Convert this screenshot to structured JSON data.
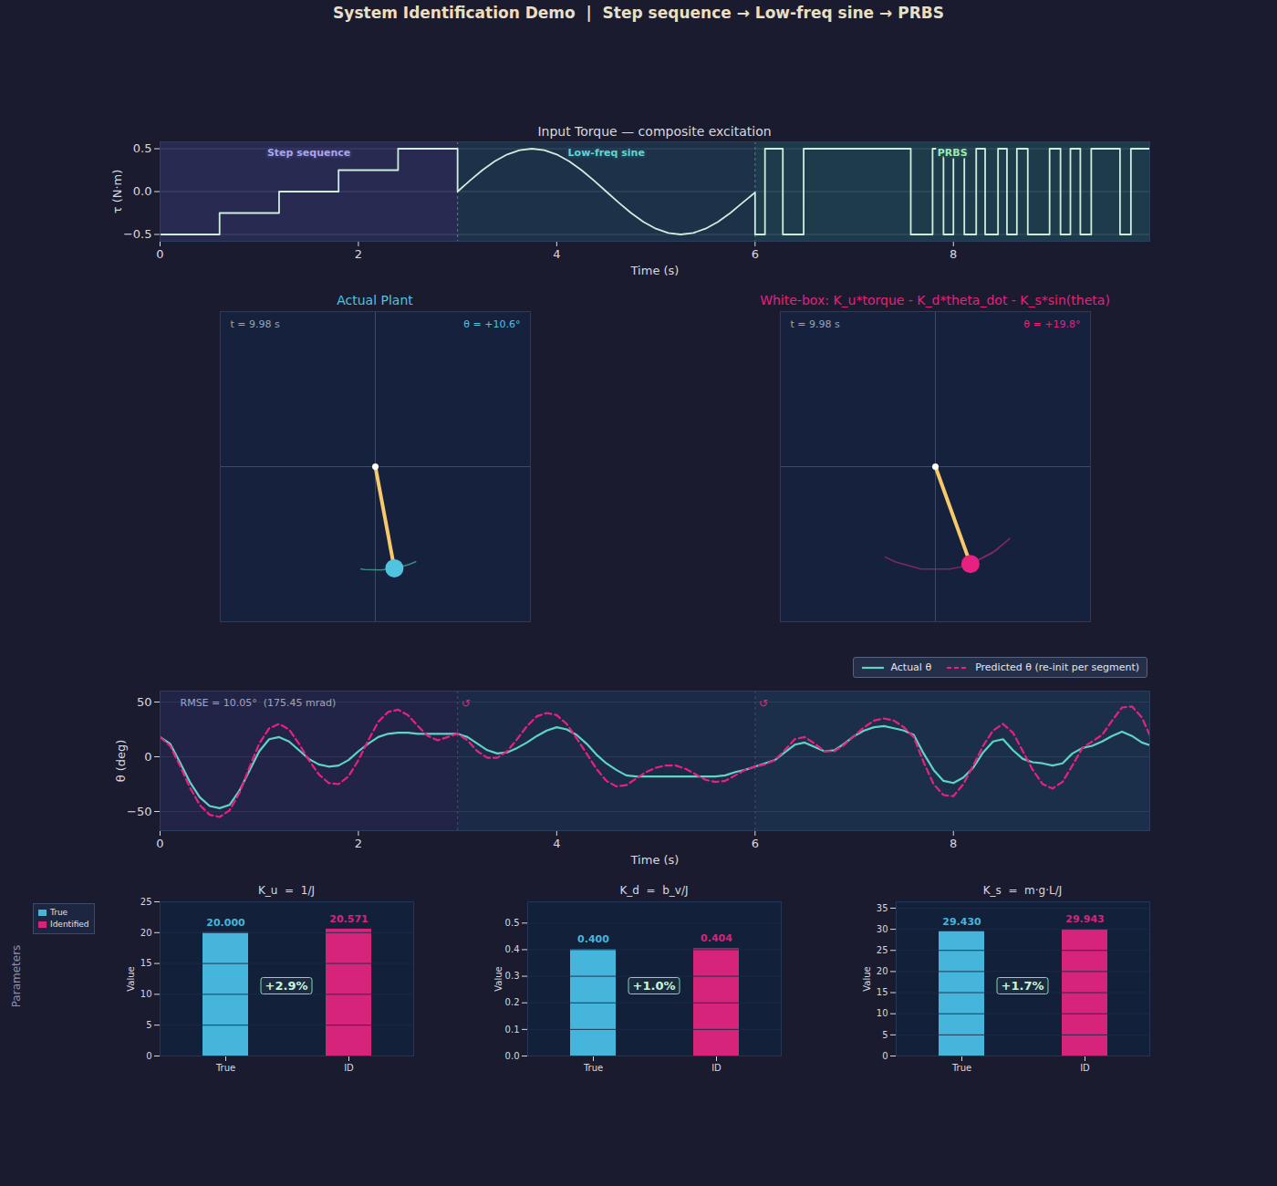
{
  "title": "System Identification Demo  |  Step sequence → Low-freq sine → PRBS",
  "side_label": "Parameters",
  "chart_data": [
    {
      "type": "line",
      "title": "Input Torque — composite excitation",
      "x_label": "Time (s)",
      "y_label": "τ (N·m)",
      "xlim": [
        0,
        9.98
      ],
      "ylim": [
        -0.58,
        0.58
      ],
      "xticks": [
        0,
        2,
        4,
        6,
        8
      ],
      "yticks": [
        {
          "value": -0.5,
          "label": "−0.5"
        },
        {
          "value": 0,
          "label": "0.0"
        },
        0.5
      ],
      "grid": true,
      "color": "#cdeedd",
      "regions": [
        {
          "name": "Step sequence",
          "start": 0,
          "end": 3,
          "color": "#282a52"
        },
        {
          "name": "Low-freq sine",
          "start": 3,
          "end": 6,
          "color": "#1d3249"
        },
        {
          "name": "PRBS",
          "start": 6,
          "end": 9.98,
          "color": "#1e3b4c"
        }
      ],
      "x": [
        0,
        0.6,
        0.6,
        1.2,
        1.2,
        1.8,
        1.8,
        2.4,
        2.4,
        3.0,
        3.0,
        3.125,
        3.25,
        3.375,
        3.5,
        3.625,
        3.75,
        3.875,
        4.0,
        4.125,
        4.25,
        4.375,
        4.5,
        4.625,
        4.75,
        4.875,
        5.0,
        5.125,
        5.25,
        5.375,
        5.5,
        5.625,
        5.75,
        5.875,
        6.0,
        6.0,
        6.1,
        6.1,
        6.28,
        6.28,
        6.49,
        6.49,
        7.57,
        7.57,
        7.79,
        7.79,
        7.9,
        7.9,
        8.0,
        8.0,
        8.11,
        8.11,
        8.23,
        8.23,
        8.32,
        8.32,
        8.45,
        8.45,
        8.54,
        8.54,
        8.64,
        8.64,
        8.75,
        8.75,
        8.97,
        8.97,
        9.08,
        9.08,
        9.18,
        9.18,
        9.28,
        9.28,
        9.39,
        9.39,
        9.68,
        9.68,
        9.79,
        9.79,
        9.98
      ],
      "values": [
        -0.5,
        -0.5,
        -0.25,
        -0.25,
        0,
        0,
        0.25,
        0.25,
        0.5,
        0.5,
        0,
        0.129,
        0.25,
        0.354,
        0.433,
        0.483,
        0.5,
        0.483,
        0.433,
        0.354,
        0.25,
        0.129,
        0,
        -0.129,
        -0.25,
        -0.354,
        -0.433,
        -0.483,
        -0.5,
        -0.483,
        -0.433,
        -0.354,
        -0.25,
        -0.129,
        -0.01,
        -0.5,
        -0.5,
        0.5,
        0.5,
        -0.5,
        -0.5,
        0.5,
        0.5,
        -0.5,
        -0.5,
        0.5,
        0.5,
        -0.5,
        -0.5,
        0.5,
        0.5,
        -0.5,
        -0.5,
        0.5,
        0.5,
        -0.5,
        -0.5,
        0.5,
        0.5,
        -0.5,
        -0.5,
        0.5,
        0.5,
        -0.5,
        -0.5,
        0.5,
        0.5,
        -0.5,
        -0.5,
        0.5,
        0.5,
        -0.5,
        -0.5,
        0.5,
        0.5,
        -0.5,
        -0.5,
        0.5,
        0.5
      ]
    },
    {
      "type": "line",
      "x_label": "Time (s)",
      "y_label": "θ (deg)",
      "xlim": [
        0,
        9.98
      ],
      "ylim": [
        -67.5,
        60
      ],
      "xticks": [
        0,
        2,
        4,
        6,
        8
      ],
      "yticks": [
        {
          "value": -50,
          "label": "−50"
        },
        0,
        50
      ],
      "grid": true,
      "legend": "above",
      "annotation": "RMSE = 10.05°  (175.45 mrad)",
      "markers": [
        {
          "x": 3,
          "text": "↺"
        },
        {
          "x": 6,
          "text": "↺"
        }
      ],
      "regions": [
        {
          "start": 0,
          "end": 3,
          "color": "#222447"
        },
        {
          "start": 3,
          "end": 6,
          "color": "#1b2b47"
        },
        {
          "start": 6,
          "end": 9.98,
          "color": "#1c2f4a"
        }
      ],
      "x": [
        0,
        0.1,
        0.2,
        0.3,
        0.4,
        0.5,
        0.6,
        0.7,
        0.8,
        0.9,
        1.0,
        1.1,
        1.2,
        1.3,
        1.4,
        1.5,
        1.6,
        1.7,
        1.8,
        1.9,
        2.0,
        2.1,
        2.2,
        2.3,
        2.4,
        2.5,
        2.6,
        2.7,
        2.8,
        2.9,
        3.0,
        3.1,
        3.2,
        3.3,
        3.4,
        3.5,
        3.6,
        3.7,
        3.8,
        3.9,
        4.0,
        4.1,
        4.2,
        4.3,
        4.4,
        4.5,
        4.6,
        4.7,
        4.8,
        4.9,
        5.0,
        5.1,
        5.2,
        5.3,
        5.4,
        5.5,
        5.6,
        5.7,
        5.8,
        5.9,
        6.0,
        6.1,
        6.2,
        6.3,
        6.4,
        6.5,
        6.6,
        6.7,
        6.8,
        6.9,
        7.0,
        7.1,
        7.2,
        7.3,
        7.4,
        7.5,
        7.6,
        7.7,
        7.8,
        7.9,
        8.0,
        8.1,
        8.2,
        8.3,
        8.4,
        8.5,
        8.6,
        8.7,
        8.8,
        8.9,
        9.0,
        9.1,
        9.2,
        9.3,
        9.4,
        9.5,
        9.6,
        9.7,
        9.8,
        9.9,
        9.98
      ],
      "series": [
        {
          "name": "Actual θ",
          "color": "#5fd4c4",
          "line_style": "solid",
          "values": [
            18,
            12,
            -5,
            -23,
            -37,
            -45,
            -47,
            -44,
            -31,
            -13,
            5,
            16,
            18,
            14,
            6,
            -2,
            -7,
            -9,
            -8,
            -3,
            5,
            12,
            18,
            21,
            22,
            22,
            21,
            21,
            21,
            21,
            21,
            18,
            12,
            6,
            3,
            4,
            8,
            13,
            19,
            24,
            27,
            25,
            20,
            12,
            2,
            -6,
            -12,
            -17,
            -18,
            -18,
            -18,
            -18,
            -18,
            -18,
            -18,
            -18,
            -18,
            -17,
            -14,
            -12,
            -9,
            -6,
            -3,
            4,
            11,
            13,
            9,
            5,
            6,
            12,
            19,
            24,
            27,
            28,
            26,
            24,
            20,
            3,
            -12,
            -22,
            -24,
            -19,
            -10,
            4,
            14,
            16,
            6,
            -2,
            -5,
            -6,
            -8,
            -6,
            3,
            8,
            10,
            14,
            19,
            23,
            19,
            13,
            10.6
          ]
        },
        {
          "name": "Predicted θ (re-init per segment)",
          "color": "#e8207f",
          "line_style": "dashed",
          "values": [
            18,
            10,
            -8,
            -28,
            -44,
            -53,
            -55,
            -49,
            -33,
            -10,
            12,
            26,
            30,
            25,
            12,
            -3,
            -16,
            -24,
            -25,
            -18,
            -3,
            15,
            32,
            41,
            43,
            38,
            28,
            19,
            15,
            18,
            21,
            15,
            5,
            -1,
            -1,
            5,
            16,
            28,
            37,
            40,
            38,
            30,
            17,
            3,
            -11,
            -22,
            -27,
            -26,
            -20,
            -14,
            -10,
            -8,
            -8,
            -11,
            -16,
            -21,
            -23,
            -22,
            -17,
            -12,
            -9,
            -7,
            -3,
            6,
            16,
            18,
            12,
            5,
            5,
            11,
            19,
            27,
            33,
            35,
            33,
            27,
            18,
            -5,
            -25,
            -35,
            -36,
            -25,
            -8,
            10,
            24,
            30,
            22,
            5,
            -12,
            -25,
            -29,
            -23,
            -8,
            8,
            14,
            20,
            33,
            45,
            46,
            36,
            19.8
          ]
        }
      ]
    },
    {
      "type": "pendulum",
      "title": "Actual Plant",
      "color": "#4fc3e0",
      "tick_labels": false,
      "xlim": [
        -1.5,
        1.5
      ],
      "ylim": [
        -1.5,
        1.5
      ],
      "pivot": [
        0,
        0
      ],
      "length": 1,
      "time": "t = 9.98 s",
      "theta": {
        "value": 10.6,
        "label": "θ = +10.6°"
      },
      "trail": [
        -8,
        -6,
        3,
        8,
        10,
        14,
        19,
        23,
        19,
        13,
        10.6
      ]
    },
    {
      "type": "pendulum",
      "title": "White-box: K_u*torque - K_d*theta_dot - K_s*sin(theta)",
      "color": "#e8207f",
      "tick_labels": false,
      "xlim": [
        -1.5,
        1.5
      ],
      "ylim": [
        -1.5,
        1.5
      ],
      "pivot": [
        0,
        0
      ],
      "length": 1,
      "time": "t = 9.98 s",
      "theta": {
        "value": 19.8,
        "label": "θ = +19.8°"
      },
      "trail": [
        -29,
        -23,
        -8,
        8,
        14,
        20,
        33,
        45,
        46,
        36,
        19.8
      ]
    },
    {
      "type": "bar",
      "title": "K_u  =  1/J",
      "y_label": "Value",
      "categories": [
        "True",
        "ID"
      ],
      "ylim": [
        0,
        25
      ],
      "yticks": [
        0,
        5,
        10,
        15,
        20,
        25
      ],
      "grid": true,
      "data_labels": true,
      "legend": "left",
      "annotation": "+2.9%",
      "series": [
        {
          "name": "True",
          "color": "#45b5db",
          "values": [
            20.0,
            null
          ],
          "value_labels": [
            "20.000",
            null
          ]
        },
        {
          "name": "Identified",
          "color": "#d6247a",
          "values": [
            null,
            20.571
          ],
          "value_labels": [
            null,
            "20.571"
          ]
        }
      ]
    },
    {
      "type": "bar",
      "title": "K_d  =  b_v/J",
      "y_label": "Value",
      "categories": [
        "True",
        "ID"
      ],
      "ylim": [
        0,
        0.58
      ],
      "yticks": [
        {
          "value": 0,
          "label": "0.0"
        },
        0.1,
        0.2,
        0.3,
        0.4,
        0.5
      ],
      "grid": true,
      "data_labels": true,
      "annotation": "+1.0%",
      "series": [
        {
          "name": "True",
          "color": "#45b5db",
          "values": [
            0.4,
            null
          ],
          "value_labels": [
            "0.400",
            null
          ]
        },
        {
          "name": "Identified",
          "color": "#d6247a",
          "values": [
            null,
            0.404
          ],
          "value_labels": [
            null,
            "0.404"
          ]
        }
      ]
    },
    {
      "type": "bar",
      "title": "K_s  =  m·g·L/J",
      "y_label": "Value",
      "categories": [
        "True",
        "ID"
      ],
      "ylim": [
        0,
        36.5
      ],
      "yticks": [
        0,
        5,
        10,
        15,
        20,
        25,
        30,
        35
      ],
      "grid": true,
      "data_labels": true,
      "annotation": "+1.7%",
      "series": [
        {
          "name": "True",
          "color": "#45b5db",
          "values": [
            29.43,
            null
          ],
          "value_labels": [
            "29.430",
            null
          ]
        },
        {
          "name": "Identified",
          "color": "#d6247a",
          "values": [
            null,
            29.943
          ],
          "value_labels": [
            null,
            "29.943"
          ]
        }
      ]
    }
  ]
}
